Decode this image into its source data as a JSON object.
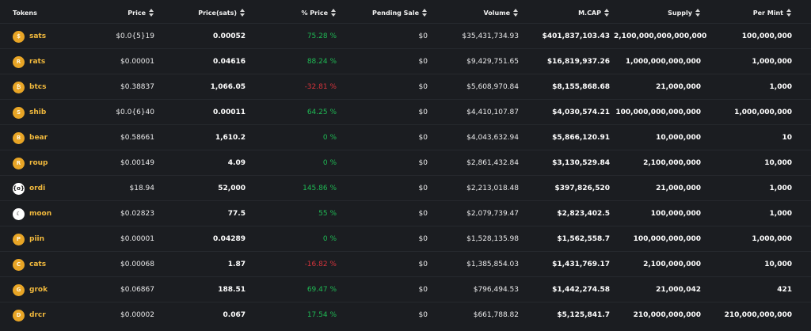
{
  "headers": {
    "tokens": "Tokens",
    "price": "Price",
    "price_sats": "Price(sats)",
    "pct_price": "% Price",
    "pending_sale": "Pending Sale",
    "volume": "Volume",
    "mcap": "M.CAP",
    "supply": "Supply",
    "per_mint": "Per Mint"
  },
  "colors": {
    "positive": "#1fb954",
    "negative": "#d7343c",
    "neutral": "#1fb954",
    "token_name": "#f1b93d",
    "icon_bg": "#e8a526"
  },
  "rows": [
    {
      "icon": "dollar-coin-icon",
      "glyph": "$",
      "name": "sats",
      "price": "$0.0{5}19",
      "price_sats": "0.00052",
      "pct": "75.28 %",
      "trend": "positive",
      "pending": "$0",
      "volume": "$35,431,734.93",
      "mcap": "$401,837,103.43",
      "supply": "2,100,000,000,000,000",
      "per_mint": "100,000,000"
    },
    {
      "icon": "r-coin-icon",
      "glyph": "R",
      "name": "rats",
      "price": "$0.00001",
      "price_sats": "0.04616",
      "pct": "88.24 %",
      "trend": "positive",
      "pending": "$0",
      "volume": "$9,429,751.65",
      "mcap": "$16,819,937.26",
      "supply": "1,000,000,000,000",
      "per_mint": "1,000,000"
    },
    {
      "icon": "bitcoin-icon",
      "glyph": "₿",
      "name": "btcs",
      "price": "$0.38837",
      "price_sats": "1,066.05",
      "pct": "-32.81 %",
      "trend": "negative",
      "pending": "$0",
      "volume": "$5,608,970.84",
      "mcap": "$8,155,868.68",
      "supply": "21,000,000",
      "per_mint": "1,000"
    },
    {
      "icon": "s-coin-icon",
      "glyph": "S",
      "name": "shib",
      "price": "$0.0{6}40",
      "price_sats": "0.00011",
      "pct": "64.25 %",
      "trend": "positive",
      "pending": "$0",
      "volume": "$4,410,107.87",
      "mcap": "$4,030,574.21",
      "supply": "100,000,000,000,000",
      "per_mint": "1,000,000,000"
    },
    {
      "icon": "b-coin-icon",
      "glyph": "B",
      "name": "bear",
      "price": "$0.58661",
      "price_sats": "1,610.2",
      "pct": "0 %",
      "trend": "neutral",
      "pending": "$0",
      "volume": "$4,043,632.94",
      "mcap": "$5,866,120.91",
      "supply": "10,000,000",
      "per_mint": "10"
    },
    {
      "icon": "r-coin-icon",
      "glyph": "R",
      "name": "roup",
      "price": "$0.00149",
      "price_sats": "4.09",
      "pct": "0 %",
      "trend": "neutral",
      "pending": "$0",
      "volume": "$2,861,432.84",
      "mcap": "$3,130,529.84",
      "supply": "2,100,000,000",
      "per_mint": "10,000"
    },
    {
      "icon": "ordi-icon",
      "glyph": "{o}",
      "name": "ordi",
      "price": "$18.94",
      "price_sats": "52,000",
      "pct": "145.86 %",
      "trend": "positive",
      "pending": "$0",
      "volume": "$2,213,018.48",
      "mcap": "$397,826,520",
      "supply": "21,000,000",
      "per_mint": "1,000"
    },
    {
      "icon": "moon-icon",
      "glyph": "☾",
      "name": "moon",
      "price": "$0.02823",
      "price_sats": "77.5",
      "pct": "55 %",
      "trend": "positive",
      "pending": "$0",
      "volume": "$2,079,739.47",
      "mcap": "$2,823,402.5",
      "supply": "100,000,000",
      "per_mint": "1,000"
    },
    {
      "icon": "p-coin-icon",
      "glyph": "P",
      "name": "piin",
      "price": "$0.00001",
      "price_sats": "0.04289",
      "pct": "0 %",
      "trend": "neutral",
      "pending": "$0",
      "volume": "$1,528,135.98",
      "mcap": "$1,562,558.7",
      "supply": "100,000,000,000",
      "per_mint": "1,000,000"
    },
    {
      "icon": "c-coin-icon",
      "glyph": "C",
      "name": "cats",
      "price": "$0.00068",
      "price_sats": "1.87",
      "pct": "-16.82 %",
      "trend": "negative",
      "pending": "$0",
      "volume": "$1,385,854.03",
      "mcap": "$1,431,769.17",
      "supply": "2,100,000,000",
      "per_mint": "10,000"
    },
    {
      "icon": "g-coin-icon",
      "glyph": "G",
      "name": "grok",
      "price": "$0.06867",
      "price_sats": "188.51",
      "pct": "69.47 %",
      "trend": "positive",
      "pending": "$0",
      "volume": "$796,494.53",
      "mcap": "$1,442,274.58",
      "supply": "21,000,042",
      "per_mint": "421"
    },
    {
      "icon": "d-coin-icon",
      "glyph": "D",
      "name": "drcr",
      "price": "$0.00002",
      "price_sats": "0.067",
      "pct": "17.54 %",
      "trend": "positive",
      "pending": "$0",
      "volume": "$661,788.82",
      "mcap": "$5,125,841.7",
      "supply": "210,000,000,000",
      "per_mint": "210,000,000,000"
    }
  ]
}
